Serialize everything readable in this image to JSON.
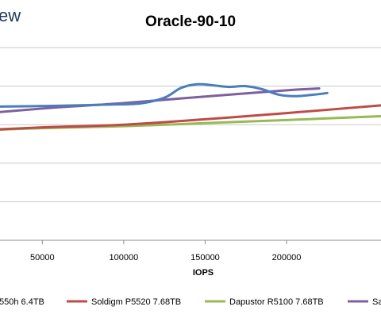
{
  "brand_text": "ew",
  "colors": {
    "grid": "#c9c9c9",
    "axis": "#8c8c8c"
  },
  "chart_data": {
    "type": "line",
    "title": "Oracle-90-10",
    "xlabel": "IOPS",
    "ylabel": "",
    "xlim": [
      24000,
      258000
    ],
    "ylim": [
      0,
      5
    ],
    "x_ticks": [
      50000,
      100000,
      150000,
      200000
    ],
    "x_tick_labels": [
      "50000",
      "100000",
      "150000",
      "200000"
    ],
    "grid": true,
    "legend_position": "bottom",
    "series": [
      {
        "name": "550h 6.4TB",
        "color": "#4a7ebb",
        "x": [
          24000,
          60000,
          90000,
          110000,
          125000,
          135000,
          145000,
          155000,
          165000,
          175000,
          185000,
          195000,
          205000,
          215000,
          225000
        ],
        "y": [
          3.47,
          3.49,
          3.52,
          3.55,
          3.7,
          3.95,
          4.05,
          4.02,
          3.98,
          4.0,
          3.92,
          3.78,
          3.74,
          3.77,
          3.82
        ]
      },
      {
        "name": "Soldigm P5520 7.68TB",
        "color": "#be4b48",
        "x": [
          24000,
          50000,
          100000,
          150000,
          200000,
          258000
        ],
        "y": [
          2.88,
          2.93,
          3.0,
          3.14,
          3.3,
          3.5
        ]
      },
      {
        "name": "Dapustor R5100 7.68TB",
        "color": "#98b954",
        "x": [
          24000,
          50000,
          100000,
          150000,
          200000,
          258000
        ],
        "y": [
          2.87,
          2.91,
          2.96,
          3.04,
          3.12,
          3.22
        ]
      },
      {
        "name": "Sa",
        "color": "#7d60a0",
        "x": [
          24000,
          60000,
          100000,
          150000,
          200000,
          220000
        ],
        "y": [
          3.33,
          3.45,
          3.56,
          3.73,
          3.89,
          3.94
        ]
      }
    ]
  }
}
